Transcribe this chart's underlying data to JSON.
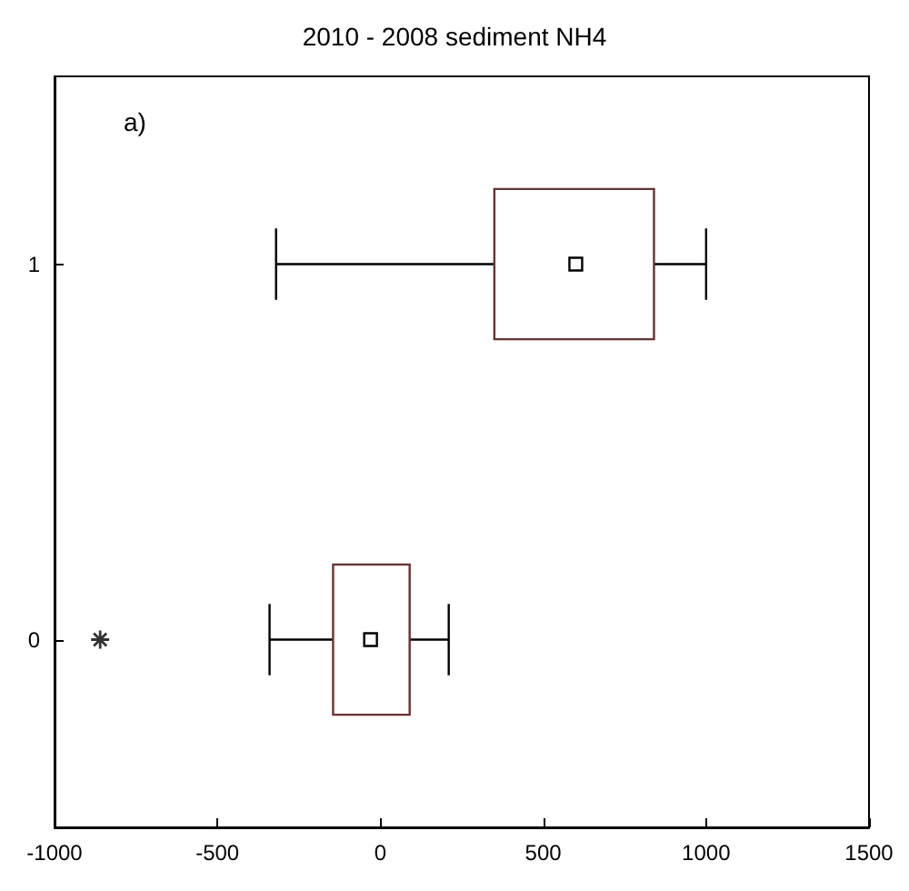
{
  "chart_data": {
    "type": "box",
    "orientation": "horizontal",
    "title": "2010 - 2008 sediment NH4",
    "annotations": [
      "a)"
    ],
    "categories": [
      "1",
      "0"
    ],
    "boxes": [
      {
        "low": -320,
        "q1": 350,
        "median": 600,
        "q3": 840,
        "high": 1000
      },
      {
        "low": -340,
        "q1": -145,
        "median": -30,
        "q3": 90,
        "high": 210,
        "outliers": [
          -860
        ]
      }
    ],
    "color": "#6b3030",
    "xlim": [
      -1000,
      1500
    ],
    "xticks": [
      -1000,
      -500,
      0,
      500,
      1000,
      1500
    ],
    "grid": false
  }
}
